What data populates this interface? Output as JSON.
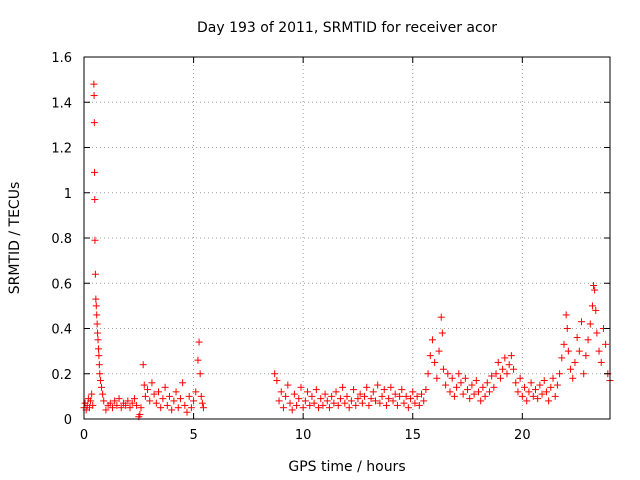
{
  "chart_data": {
    "type": "scatter",
    "title": "Day 193 of 2011, SRMTID for receiver acor",
    "xlabel": "GPS time / hours",
    "ylabel": "SRMTID / TECUs",
    "xlim": [
      0,
      24
    ],
    "ylim": [
      0,
      1.6
    ],
    "x_ticks": [
      0,
      5,
      10,
      15,
      20
    ],
    "x_tick_labels": [
      "0",
      "5",
      "10",
      "15",
      "20"
    ],
    "y_ticks": [
      0,
      0.2,
      0.4,
      0.6,
      0.8,
      1.0,
      1.2,
      1.4,
      1.6
    ],
    "y_tick_labels": [
      "0",
      "0.2",
      "0.4",
      "0.6",
      "0.8",
      "1",
      "1.2",
      "1.4",
      "1.6"
    ],
    "grid": true,
    "marker": "+",
    "color": "#ff0000",
    "series": [
      {
        "points": [
          [
            0.0,
            0.05
          ],
          [
            0.05,
            0.07
          ],
          [
            0.1,
            0.04
          ],
          [
            0.15,
            0.06
          ],
          [
            0.2,
            0.09
          ],
          [
            0.25,
            0.05
          ],
          [
            0.3,
            0.08
          ],
          [
            0.35,
            0.11
          ],
          [
            0.4,
            0.06
          ],
          [
            0.45,
            1.48
          ],
          [
            0.46,
            1.43
          ],
          [
            0.47,
            1.31
          ],
          [
            0.48,
            1.09
          ],
          [
            0.49,
            0.97
          ],
          [
            0.5,
            0.79
          ],
          [
            0.52,
            0.64
          ],
          [
            0.54,
            0.53
          ],
          [
            0.56,
            0.5
          ],
          [
            0.58,
            0.46
          ],
          [
            0.6,
            0.42
          ],
          [
            0.62,
            0.38
          ],
          [
            0.64,
            0.35
          ],
          [
            0.66,
            0.31
          ],
          [
            0.68,
            0.28
          ],
          [
            0.7,
            0.24
          ],
          [
            0.72,
            0.2
          ],
          [
            0.75,
            0.17
          ],
          [
            0.8,
            0.14
          ],
          [
            0.85,
            0.11
          ],
          [
            0.9,
            0.08
          ],
          [
            1.0,
            0.04
          ],
          [
            1.1,
            0.06
          ],
          [
            1.2,
            0.07
          ],
          [
            1.3,
            0.05
          ],
          [
            1.4,
            0.08
          ],
          [
            1.5,
            0.06
          ],
          [
            1.6,
            0.09
          ],
          [
            1.7,
            0.05
          ],
          [
            1.8,
            0.07
          ],
          [
            1.9,
            0.06
          ],
          [
            2.0,
            0.08
          ],
          [
            2.1,
            0.05
          ],
          [
            2.2,
            0.07
          ],
          [
            2.3,
            0.09
          ],
          [
            2.4,
            0.06
          ],
          [
            2.5,
            0.01
          ],
          [
            2.55,
            0.02
          ],
          [
            2.6,
            0.05
          ],
          [
            2.7,
            0.24
          ],
          [
            2.75,
            0.15
          ],
          [
            2.8,
            0.1
          ],
          [
            2.9,
            0.13
          ],
          [
            3.0,
            0.08
          ],
          [
            3.1,
            0.16
          ],
          [
            3.2,
            0.11
          ],
          [
            3.3,
            0.07
          ],
          [
            3.4,
            0.12
          ],
          [
            3.5,
            0.05
          ],
          [
            3.6,
            0.09
          ],
          [
            3.7,
            0.14
          ],
          [
            3.8,
            0.06
          ],
          [
            3.9,
            0.1
          ],
          [
            4.0,
            0.04
          ],
          [
            4.1,
            0.08
          ],
          [
            4.2,
            0.12
          ],
          [
            4.3,
            0.05
          ],
          [
            4.4,
            0.09
          ],
          [
            4.5,
            0.16
          ],
          [
            4.6,
            0.06
          ],
          [
            4.7,
            0.03
          ],
          [
            4.8,
            0.1
          ],
          [
            4.9,
            0.05
          ],
          [
            5.0,
            0.08
          ],
          [
            5.1,
            0.12
          ],
          [
            5.2,
            0.26
          ],
          [
            5.25,
            0.34
          ],
          [
            5.3,
            0.2
          ],
          [
            5.35,
            0.1
          ],
          [
            5.4,
            0.07
          ],
          [
            5.45,
            0.05
          ],
          [
            8.7,
            0.2
          ],
          [
            8.8,
            0.17
          ],
          [
            8.9,
            0.08
          ],
          [
            9.0,
            0.12
          ],
          [
            9.1,
            0.05
          ],
          [
            9.2,
            0.1
          ],
          [
            9.3,
            0.15
          ],
          [
            9.4,
            0.07
          ],
          [
            9.5,
            0.04
          ],
          [
            9.6,
            0.11
          ],
          [
            9.7,
            0.06
          ],
          [
            9.8,
            0.09
          ],
          [
            9.9,
            0.14
          ],
          [
            10.0,
            0.05
          ],
          [
            10.1,
            0.08
          ],
          [
            10.2,
            0.12
          ],
          [
            10.3,
            0.06
          ],
          [
            10.4,
            0.1
          ],
          [
            10.5,
            0.07
          ],
          [
            10.6,
            0.13
          ],
          [
            10.7,
            0.05
          ],
          [
            10.8,
            0.09
          ],
          [
            10.9,
            0.06
          ],
          [
            11.0,
            0.11
          ],
          [
            11.1,
            0.08
          ],
          [
            11.2,
            0.05
          ],
          [
            11.3,
            0.1
          ],
          [
            11.4,
            0.07
          ],
          [
            11.5,
            0.12
          ],
          [
            11.6,
            0.06
          ],
          [
            11.7,
            0.09
          ],
          [
            11.8,
            0.14
          ],
          [
            11.9,
            0.07
          ],
          [
            12.0,
            0.1
          ],
          [
            12.1,
            0.05
          ],
          [
            12.2,
            0.08
          ],
          [
            12.3,
            0.13
          ],
          [
            12.4,
            0.06
          ],
          [
            12.5,
            0.09
          ],
          [
            12.6,
            0.11
          ],
          [
            12.7,
            0.07
          ],
          [
            12.8,
            0.1
          ],
          [
            12.9,
            0.14
          ],
          [
            13.0,
            0.06
          ],
          [
            13.1,
            0.09
          ],
          [
            13.2,
            0.12
          ],
          [
            13.3,
            0.08
          ],
          [
            13.4,
            0.15
          ],
          [
            13.5,
            0.07
          ],
          [
            13.6,
            0.1
          ],
          [
            13.7,
            0.13
          ],
          [
            13.8,
            0.06
          ],
          [
            13.9,
            0.09
          ],
          [
            14.0,
            0.14
          ],
          [
            14.1,
            0.08
          ],
          [
            14.2,
            0.11
          ],
          [
            14.3,
            0.06
          ],
          [
            14.4,
            0.1
          ],
          [
            14.5,
            0.13
          ],
          [
            14.6,
            0.07
          ],
          [
            14.7,
            0.1
          ],
          [
            14.8,
            0.05
          ],
          [
            14.9,
            0.09
          ],
          [
            15.0,
            0.12
          ],
          [
            15.1,
            0.07
          ],
          [
            15.2,
            0.1
          ],
          [
            15.3,
            0.06
          ],
          [
            15.4,
            0.11
          ],
          [
            15.5,
            0.08
          ],
          [
            15.6,
            0.13
          ],
          [
            15.7,
            0.2
          ],
          [
            15.8,
            0.28
          ],
          [
            15.9,
            0.35
          ],
          [
            16.0,
            0.25
          ],
          [
            16.1,
            0.18
          ],
          [
            16.2,
            0.3
          ],
          [
            16.3,
            0.45
          ],
          [
            16.35,
            0.38
          ],
          [
            16.4,
            0.22
          ],
          [
            16.5,
            0.15
          ],
          [
            16.6,
            0.2
          ],
          [
            16.7,
            0.12
          ],
          [
            16.8,
            0.18
          ],
          [
            16.9,
            0.1
          ],
          [
            17.0,
            0.14
          ],
          [
            17.1,
            0.2
          ],
          [
            17.2,
            0.16
          ],
          [
            17.3,
            0.11
          ],
          [
            17.4,
            0.18
          ],
          [
            17.5,
            0.13
          ],
          [
            17.6,
            0.09
          ],
          [
            17.7,
            0.15
          ],
          [
            17.8,
            0.11
          ],
          [
            17.9,
            0.17
          ],
          [
            18.0,
            0.12
          ],
          [
            18.1,
            0.08
          ],
          [
            18.2,
            0.14
          ],
          [
            18.3,
            0.1
          ],
          [
            18.4,
            0.16
          ],
          [
            18.5,
            0.12
          ],
          [
            18.6,
            0.19
          ],
          [
            18.7,
            0.14
          ],
          [
            18.8,
            0.2
          ],
          [
            18.9,
            0.25
          ],
          [
            19.0,
            0.18
          ],
          [
            19.1,
            0.22
          ],
          [
            19.2,
            0.27
          ],
          [
            19.3,
            0.2
          ],
          [
            19.4,
            0.24
          ],
          [
            19.5,
            0.28
          ],
          [
            19.6,
            0.22
          ],
          [
            19.7,
            0.16
          ],
          [
            19.8,
            0.12
          ],
          [
            19.9,
            0.18
          ],
          [
            20.0,
            0.1
          ],
          [
            20.1,
            0.14
          ],
          [
            20.2,
            0.08
          ],
          [
            20.3,
            0.12
          ],
          [
            20.4,
            0.16
          ],
          [
            20.5,
            0.1
          ],
          [
            20.6,
            0.13
          ],
          [
            20.7,
            0.09
          ],
          [
            20.8,
            0.15
          ],
          [
            20.9,
            0.11
          ],
          [
            21.0,
            0.17
          ],
          [
            21.1,
            0.12
          ],
          [
            21.2,
            0.08
          ],
          [
            21.3,
            0.14
          ],
          [
            21.4,
            0.18
          ],
          [
            21.5,
            0.1
          ],
          [
            21.6,
            0.15
          ],
          [
            21.7,
            0.2
          ],
          [
            21.8,
            0.27
          ],
          [
            21.9,
            0.33
          ],
          [
            22.0,
            0.46
          ],
          [
            22.05,
            0.4
          ],
          [
            22.1,
            0.3
          ],
          [
            22.2,
            0.22
          ],
          [
            22.3,
            0.18
          ],
          [
            22.4,
            0.25
          ],
          [
            22.5,
            0.36
          ],
          [
            22.6,
            0.3
          ],
          [
            22.7,
            0.43
          ],
          [
            22.8,
            0.2
          ],
          [
            22.9,
            0.28
          ],
          [
            23.0,
            0.35
          ],
          [
            23.1,
            0.42
          ],
          [
            23.2,
            0.5
          ],
          [
            23.25,
            0.59
          ],
          [
            23.3,
            0.57
          ],
          [
            23.35,
            0.48
          ],
          [
            23.4,
            0.38
          ],
          [
            23.5,
            0.3
          ],
          [
            23.6,
            0.25
          ],
          [
            23.7,
            0.4
          ],
          [
            23.8,
            0.33
          ],
          [
            23.9,
            0.2
          ],
          [
            24.0,
            0.17
          ]
        ]
      }
    ]
  }
}
